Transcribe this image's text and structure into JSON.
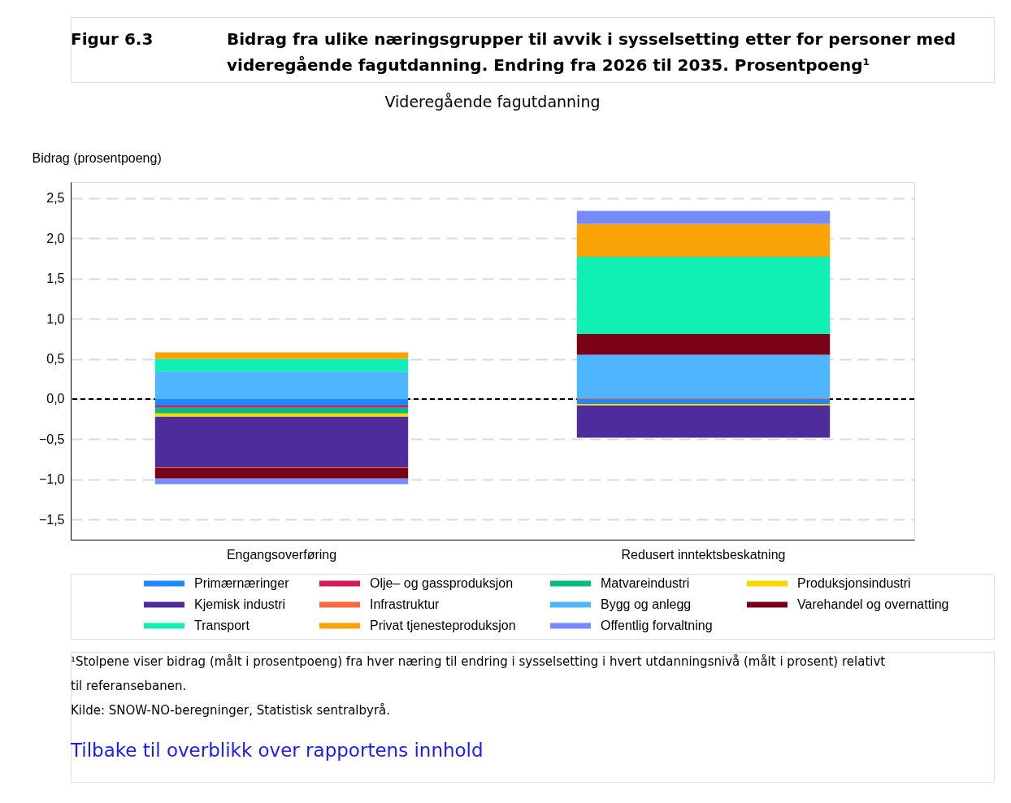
{
  "chart_data": {
    "type": "bar",
    "stacked": true,
    "title": "Bidrag fra ulike næringsgrupper til avvik i sysselsetting etter for personer med videregående fagutdanning. Endring fra 2026 til 2035. Prosentpoeng¹",
    "subtitle": "Videregående fagutdanning",
    "ylabel": "Bidrag (prosentpoeng)",
    "categories": [
      "Engangsoverføring",
      "Redusert inntektsbeskatning"
    ],
    "series": [
      {
        "name": "Primærnæringer",
        "color": "#1e88ff",
        "values": [
          -0.08,
          -0.06
        ]
      },
      {
        "name": "Olje– og gassproduksjon",
        "color": "#d6195c",
        "values": [
          -0.03,
          null
        ]
      },
      {
        "name": "Matvareindustri",
        "color": "#05bd80",
        "values": [
          -0.07,
          null
        ]
      },
      {
        "name": "Produksjonsindustri",
        "color": "#ffd700",
        "values": [
          -0.04,
          -0.02
        ]
      },
      {
        "name": "Kjemisk industri",
        "color": "#4f2c9b",
        "values": [
          -0.63,
          -0.4
        ]
      },
      {
        "name": "Infrastruktur",
        "color": "#ff6a3d",
        "values": [
          -0.01,
          0.01
        ]
      },
      {
        "name": "Bygg og anlegg",
        "color": "#4fb5ff",
        "values": [
          0.34,
          0.54
        ]
      },
      {
        "name": "Varehandel og overnatting",
        "color": "#7a0018",
        "values": [
          -0.13,
          0.26
        ]
      },
      {
        "name": "Transport",
        "color": "#10f0b4",
        "values": [
          0.16,
          0.96
        ]
      },
      {
        "name": "Privat tjenesteproduksjon",
        "color": "#f9a306",
        "values": [
          0.08,
          0.41
        ]
      },
      {
        "name": "Offentlig forvaltning",
        "color": "#768afe",
        "values": [
          -0.07,
          0.16
        ]
      }
    ],
    "ylim": [
      -1.75,
      2.7
    ],
    "yticks": [
      {
        "value": -1.5,
        "label": "−1,5"
      },
      {
        "value": -1.0,
        "label": "−1,0"
      },
      {
        "value": -0.5,
        "label": "−0,5"
      },
      {
        "value": 0,
        "label": "0,0"
      },
      {
        "value": 0.5,
        "label": "0,5"
      },
      {
        "value": 1.0,
        "label": "1,0"
      },
      {
        "value": 1.5,
        "label": "1,5"
      },
      {
        "value": 2.0,
        "label": "2,0"
      },
      {
        "value": 2.5,
        "label": "2,5"
      }
    ],
    "grid": "y",
    "legend": "bottom",
    "ref_lines": [
      {
        "axis": "y",
        "value": 0,
        "color": "#000000",
        "line_style": "dashed"
      }
    ],
    "annotations": [
      "Figur 6.3",
      "¹Stolpene viser bidrag (målt i prosentpoeng) fra hver næring til endring i sysselsetting i hvert utdanningsnivå (målt i prosent) relativt til referansebanen.",
      "Kilde: SNOW-NO-beregninger, Statistisk sentralbyrå.",
      "Tilbake til overblikk over rapportens innhold"
    ]
  }
}
